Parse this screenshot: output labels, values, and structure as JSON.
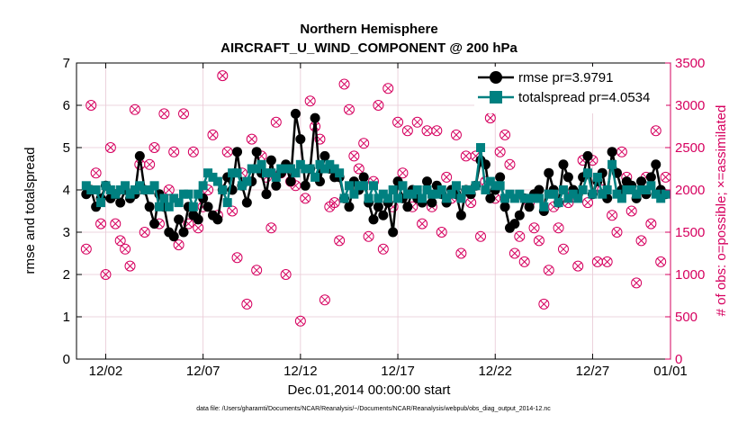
{
  "colors": {
    "rmse": "#000000",
    "totalspread": "#008080",
    "obs": "#d6005f",
    "grid": "#e8c8d4"
  },
  "chart_data": {
    "type": "line",
    "title": "Northern Hemisphere",
    "subtitle": "AIRCRAFT_U_WIND_COMPONENT @ 200 hPa",
    "xlabel": "Dec.01,2014 00:00:00 start",
    "ylabel_left": "rmse and totalspread",
    "ylabel_right": "# of obs: o=possible; ×=assimilated",
    "footnote": "data file: /Users/gharamti/Documents/NCAR/Reanalysis/~/Documents/NCAR/Reanalysis/webpub/obs_diag_output_2014-12.nc",
    "xlim": [
      0.5,
      31.0
    ],
    "ylim_left": [
      0,
      7
    ],
    "ylim_right": [
      0,
      3500
    ],
    "x_ticks": [
      2,
      7,
      12,
      17,
      22,
      27,
      32
    ],
    "x_tick_labels": [
      "12/02",
      "12/07",
      "12/12",
      "12/17",
      "12/22",
      "12/27",
      "01/01"
    ],
    "y_ticks_left": [
      0,
      1,
      2,
      3,
      4,
      5,
      6,
      7
    ],
    "y_tick_labels_left": [
      "0",
      "1",
      "2",
      "3",
      "4",
      "5",
      "6",
      "7"
    ],
    "y_ticks_right": [
      0,
      500,
      1000,
      1500,
      2000,
      2500,
      3000,
      3500
    ],
    "y_tick_labels_right": [
      "0",
      "500",
      "1000",
      "1500",
      "2000",
      "2500",
      "3000",
      "3500"
    ],
    "legend": [
      {
        "label": "rmse pr=3.9791",
        "series": "rmse"
      },
      {
        "label": "totalspread pr=4.0534",
        "series": "totalspread"
      }
    ],
    "legend_position": "top-right",
    "grid": true,
    "x": [
      1.0,
      1.25,
      1.5,
      1.75,
      2.0,
      2.25,
      2.5,
      2.75,
      3.0,
      3.25,
      3.5,
      3.75,
      4.0,
      4.25,
      4.5,
      4.75,
      5.0,
      5.25,
      5.5,
      5.75,
      6.0,
      6.25,
      6.5,
      6.75,
      7.0,
      7.25,
      7.5,
      7.75,
      8.0,
      8.25,
      8.5,
      8.75,
      9.0,
      9.25,
      9.5,
      9.75,
      10.0,
      10.25,
      10.5,
      10.75,
      11.0,
      11.25,
      11.5,
      11.75,
      12.0,
      12.25,
      12.5,
      12.75,
      13.0,
      13.25,
      13.5,
      13.75,
      14.0,
      14.25,
      14.5,
      14.75,
      15.0,
      15.25,
      15.5,
      15.75,
      16.0,
      16.25,
      16.5,
      16.75,
      17.0,
      17.25,
      17.5,
      17.75,
      18.0,
      18.25,
      18.5,
      18.75,
      19.0,
      19.25,
      19.5,
      19.75,
      20.0,
      20.25,
      20.5,
      20.75,
      21.0,
      21.25,
      21.5,
      21.75,
      22.0,
      22.25,
      22.5,
      22.75,
      23.0,
      23.25,
      23.5,
      23.75,
      24.0,
      24.25,
      24.5,
      24.75,
      25.0,
      25.25,
      25.5,
      25.75,
      26.0,
      26.25,
      26.5,
      26.75,
      27.0,
      27.25,
      27.5,
      27.75,
      28.0,
      28.25,
      28.5,
      28.75,
      29.0,
      29.25,
      29.5,
      29.75,
      30.0,
      30.25,
      30.5,
      30.75
    ],
    "series": [
      {
        "name": "rmse",
        "values": [
          3.9,
          4.0,
          3.6,
          3.8,
          4.1,
          3.8,
          3.9,
          3.7,
          4.0,
          3.8,
          3.9,
          4.8,
          4.0,
          3.6,
          3.2,
          3.9,
          3.6,
          3.0,
          2.9,
          3.3,
          3.0,
          3.6,
          3.4,
          3.3,
          3.8,
          3.6,
          3.4,
          3.3,
          4.0,
          4.3,
          4.0,
          4.9,
          4.1,
          3.7,
          4.2,
          4.9,
          4.4,
          3.9,
          4.7,
          4.1,
          4.4,
          4.6,
          4.2,
          5.8,
          5.2,
          4.1,
          4.5,
          5.7,
          4.2,
          4.8,
          4.5,
          4.3,
          4.3,
          3.8,
          3.6,
          4.2,
          4.0,
          4.3,
          3.7,
          3.3,
          3.6,
          3.4,
          3.7,
          3.0,
          4.2,
          3.8,
          3.6,
          4.0,
          3.8,
          3.7,
          4.2,
          3.7,
          4.1,
          3.9,
          3.7,
          4.0,
          3.9,
          3.4,
          4.0,
          3.9,
          4.1,
          4.7,
          4.6,
          3.8,
          4.0,
          4.3,
          3.6,
          3.1,
          3.2,
          3.4,
          3.8,
          3.6,
          3.9,
          4.0,
          3.5,
          4.4,
          4.0,
          3.7,
          4.6,
          4.3,
          4.0,
          3.9,
          4.3,
          4.8,
          3.9,
          4.2,
          4.4,
          3.8,
          4.9,
          4.4,
          4.0,
          4.2,
          4.1,
          3.8,
          4.2,
          3.9,
          4.3,
          4.6,
          4.0,
          3.9
        ]
      },
      {
        "name": "totalspread",
        "values": [
          4.1,
          4.0,
          4.0,
          3.7,
          4.1,
          4.0,
          3.9,
          4.0,
          4.1,
          3.9,
          4.0,
          4.1,
          4.0,
          4.0,
          4.1,
          3.6,
          3.8,
          3.6,
          3.8,
          3.7,
          3.9,
          3.9,
          3.6,
          3.9,
          4.1,
          4.4,
          4.3,
          4.2,
          4.0,
          3.7,
          4.4,
          4.4,
          4.1,
          4.2,
          4.5,
          4.5,
          4.6,
          4.4,
          4.4,
          4.3,
          4.5,
          4.5,
          4.5,
          4.4,
          4.6,
          4.5,
          4.5,
          4.3,
          4.6,
          4.5,
          4.6,
          4.5,
          4.4,
          3.8,
          4.1,
          3.9,
          4.1,
          4.1,
          3.8,
          4.1,
          3.8,
          3.9,
          3.8,
          4.0,
          3.8,
          4.1,
          3.9,
          3.9,
          4.0,
          3.8,
          4.0,
          3.9,
          3.9,
          4.0,
          3.8,
          3.9,
          4.1,
          3.8,
          4.0,
          4.0,
          4.1,
          5.0,
          4.0,
          4.2,
          4.1,
          4.1,
          3.8,
          3.9,
          3.8,
          3.9,
          3.8,
          3.8,
          3.8,
          3.8,
          3.6,
          3.9,
          3.9,
          3.7,
          4.0,
          3.8,
          3.9,
          3.8,
          4.0,
          4.4,
          3.9,
          4.3,
          3.9,
          4.0,
          4.6,
          3.9,
          3.8,
          4.0,
          4.0,
          3.9,
          4.0,
          4.0,
          4.1,
          3.9,
          3.8,
          3.9
        ]
      },
      {
        "name": "obs_possible",
        "values": [
          1300,
          3000,
          2200,
          1600,
          1000,
          2500,
          1600,
          1400,
          1300,
          1100,
          2950,
          2300,
          1500,
          2300,
          2500,
          1600,
          2900,
          2000,
          2450,
          1350,
          2900,
          1600,
          2450,
          1550,
          1800,
          2000,
          2650,
          1700,
          3350,
          2450,
          1750,
          1200,
          2200,
          650,
          2600,
          1050,
          2400,
          2150,
          1550,
          2800,
          2200,
          1000,
          2100,
          2050,
          450,
          1900,
          3050,
          2750,
          2600,
          700,
          1800,
          1850,
          1400,
          3250,
          2950,
          2400,
          2250,
          2550,
          1450,
          2100,
          3000,
          1300,
          3200,
          1800,
          2800,
          2200,
          2700,
          1800,
          2800,
          1600,
          2700,
          1800,
          2700,
          1500,
          2150,
          1900,
          2650,
          1250,
          2400,
          1850,
          2400,
          1450,
          2100,
          2850,
          1900,
          2450,
          2650,
          2300,
          1250,
          1450,
          1150,
          1850,
          1550,
          1400,
          650,
          1050,
          1800,
          1550,
          1300,
          1850,
          1950,
          1100,
          2350,
          1850,
          2350,
          1150,
          2000,
          1150,
          1700,
          1500,
          2450,
          2150,
          1750,
          900,
          1400,
          2150,
          1600,
          2700,
          1150,
          2150
        ]
      }
    ]
  }
}
